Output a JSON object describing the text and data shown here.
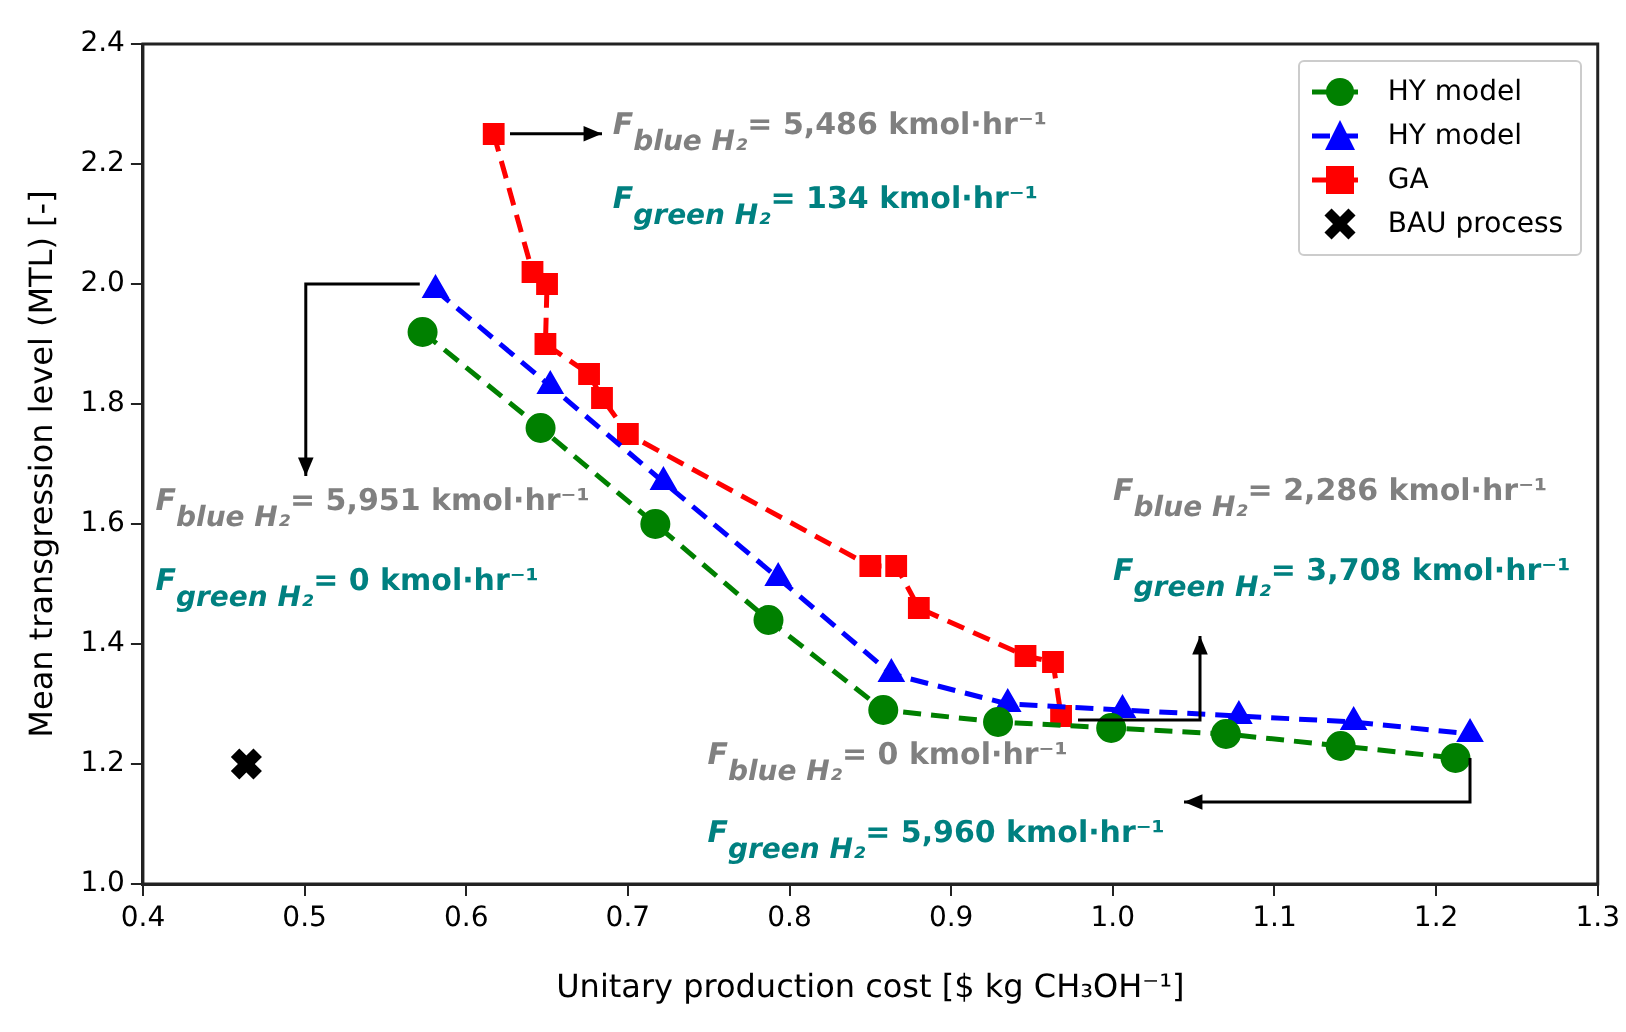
{
  "chart_data": {
    "type": "line",
    "xlabel": "Unitary production cost [$ kg CH₃OH⁻¹]",
    "ylabel": "Mean transgression level (MTL) [-]",
    "xlim": [
      0.4,
      1.3
    ],
    "xticks": [
      0.4,
      0.5,
      0.6,
      0.7,
      0.8,
      0.9,
      {
        "value": 1,
        "label": "1.0"
      },
      1.1,
      1.2,
      1.3
    ],
    "ylim": [
      1.0,
      2.4
    ],
    "yticks": [
      {
        "value": 1,
        "label": "1.0"
      },
      1.2,
      1.4,
      1.6,
      1.8,
      {
        "value": 2,
        "label": "2.0"
      },
      2.2,
      2.4
    ],
    "grid": false,
    "legend": "top right",
    "series": [
      {
        "name": "HY model",
        "color": "#008000",
        "marker": "circle",
        "line_style": "dashed",
        "x": [
          0.573,
          0.646,
          0.717,
          0.787,
          0.858,
          0.929,
          0.999,
          1.07,
          1.141,
          1.212
        ],
        "values": [
          1.92,
          1.76,
          1.6,
          1.44,
          1.29,
          1.27,
          1.26,
          1.25,
          1.23,
          1.21
        ]
      },
      {
        "name": "HY model",
        "color": "#0000ff",
        "marker": "triangle",
        "line_style": "dashed",
        "x": [
          0.581,
          0.652,
          0.722,
          0.793,
          0.863,
          0.935,
          1.006,
          1.078,
          1.149,
          1.221
        ],
        "values": [
          1.99,
          1.83,
          1.67,
          1.51,
          1.35,
          1.3,
          1.29,
          1.28,
          1.27,
          1.25
        ]
      },
      {
        "name": "GA",
        "color": "#ff0000",
        "marker": "square",
        "line_style": "dashed",
        "x": [
          0.617,
          0.641,
          0.65,
          0.649,
          0.676,
          0.684,
          0.7,
          0.85,
          0.866,
          0.88,
          0.946,
          0.963,
          0.968
        ],
        "values": [
          2.25,
          2.02,
          2.0,
          1.9,
          1.85,
          1.81,
          1.75,
          1.53,
          1.53,
          1.46,
          1.38,
          1.37,
          1.28
        ]
      },
      {
        "name": "BAU process",
        "type": "scatter",
        "color": "#000000",
        "marker": "cross",
        "x": [
          0.464
        ],
        "values": [
          1.2
        ]
      }
    ],
    "annotations": [
      "F$_{blue H₂}$= 5,486 kmol·hr⁻¹",
      "F$_{green H₂}$= 134 kmol·hr⁻¹",
      {
        "text": "F$_{blue H₂}$= 5,951 kmol·hr⁻¹",
        "x": 0.581,
        "y": 1.99
      },
      "F$_{green H₂}$= 0 kmol·hr⁻¹",
      "F$_{blue H₂}$= 2,286 kmol·hr⁻¹",
      {
        "text": "F$_{green H₂}$= 3,708 kmol·hr⁻¹",
        "x": 0.968,
        "y": 1.28
      },
      "F$_{blue H₂}$= 0 kmol·hr⁻¹",
      {
        "text": "F$_{green H₂}$= 5,960 kmol·hr⁻¹",
        "x": 1.212,
        "y": 1.21
      }
    ]
  }
}
